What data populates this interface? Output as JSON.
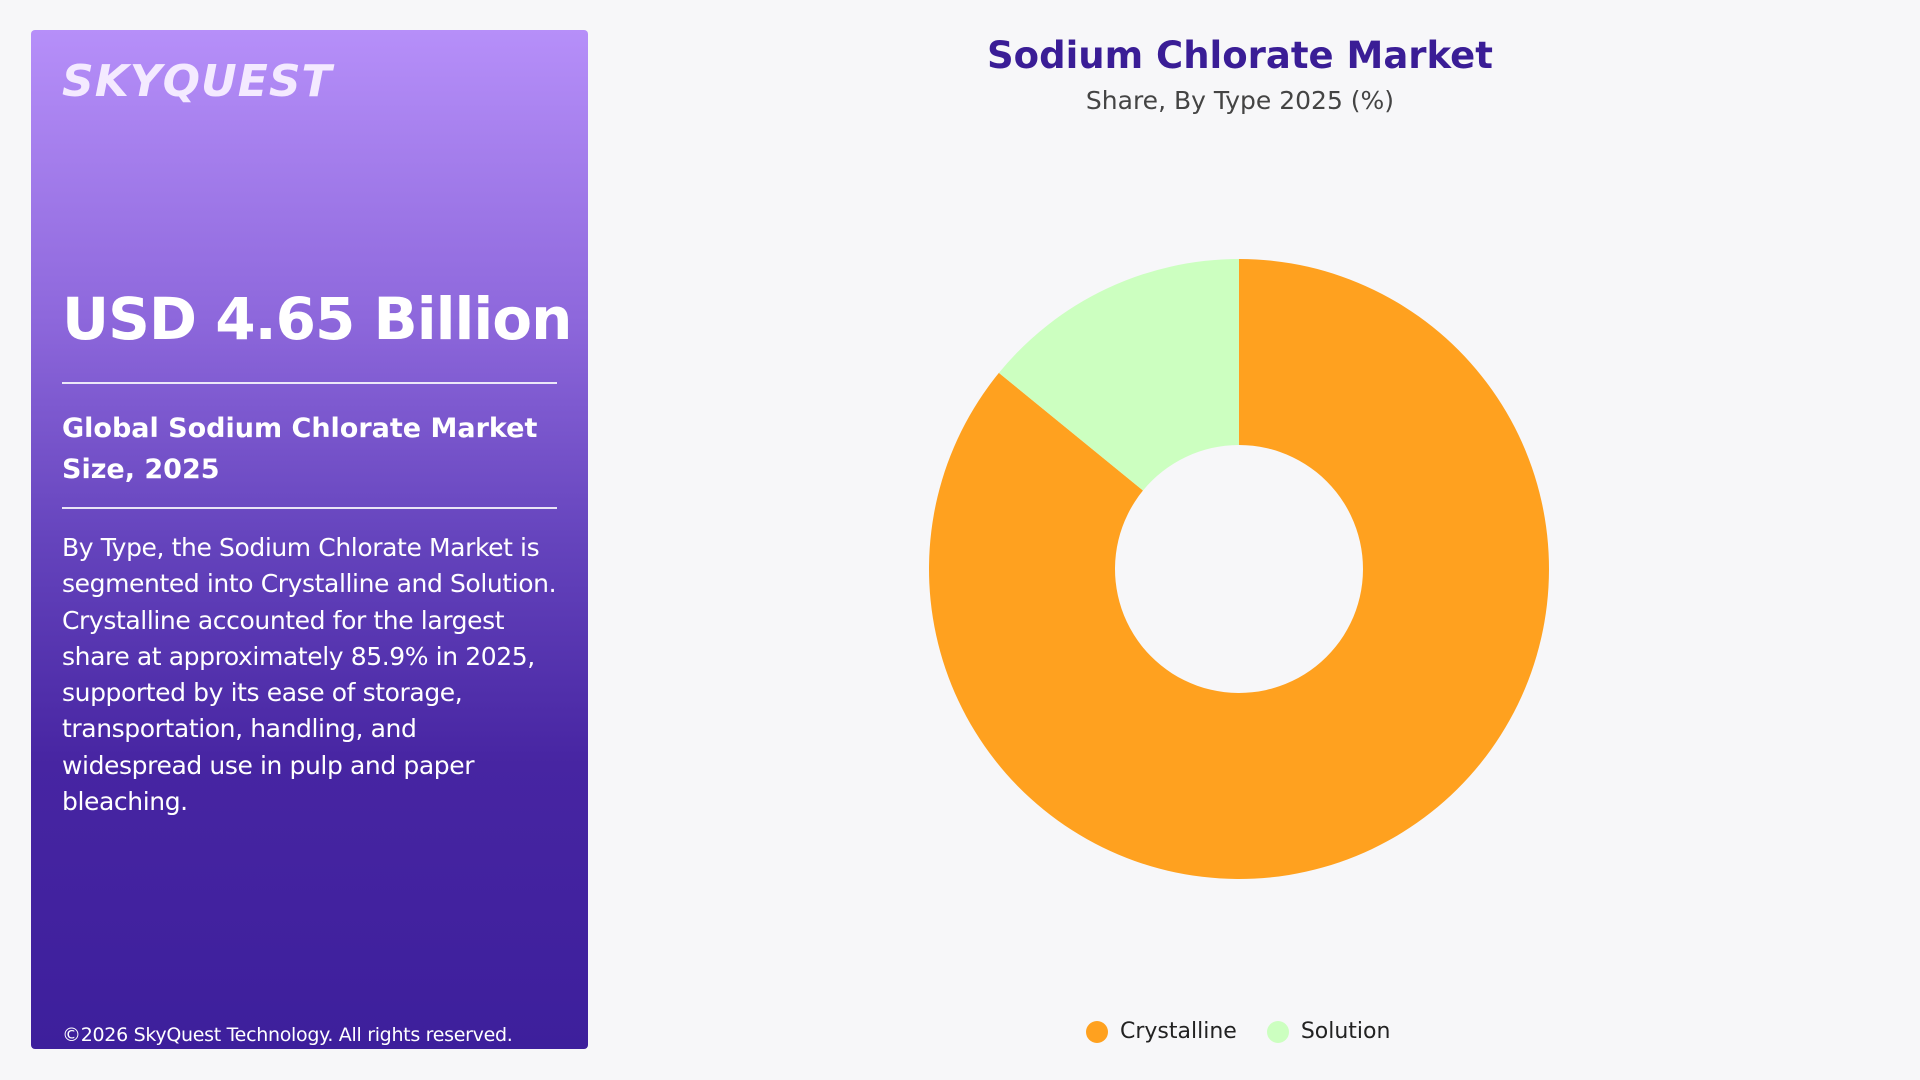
{
  "side_panel": {
    "logo": "SKYQUEST",
    "headline": "USD 4.65 Billion",
    "subhead": "Global Sodium Chlorate Market Size, 2025",
    "body": "By Type, the Sodium Chlorate Market is segmented into Crystalline and Solution. Crystalline accounted for the largest share at approximately 85.9% in 2025, supported by its ease of storage, transportation, handling, and widespread use in pulp and paper bleaching.",
    "copyright": "©2026 SkyQuest Technology. All rights reserved."
  },
  "chart_data": {
    "type": "pie",
    "title": "Sodium Chlorate Market",
    "subtitle": "Share, By Type 2025 (%)",
    "categories": [
      "Crystalline",
      "Solution"
    ],
    "values": [
      85.9,
      14.1
    ],
    "colors": [
      "#ffa11f",
      "#ccffc0"
    ],
    "donut": true,
    "legend": "bottom"
  }
}
